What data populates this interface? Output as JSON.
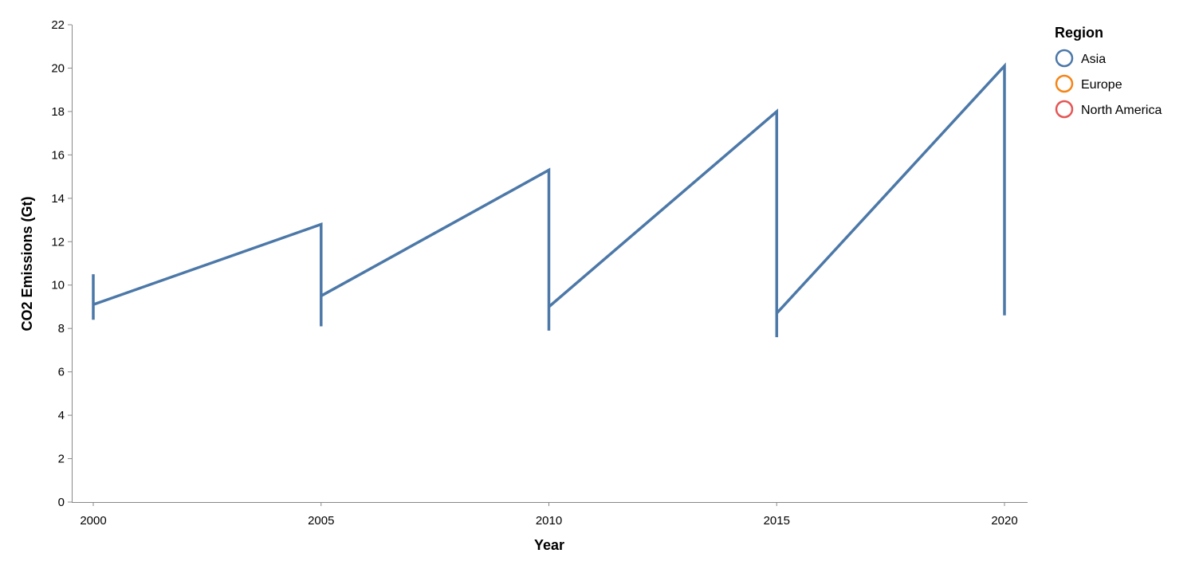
{
  "chart_data": {
    "type": "line",
    "xlabel": "Year",
    "ylabel": "CO2 Emissions (Gt)",
    "xlim": [
      2000,
      2020
    ],
    "ylim": [
      0,
      22
    ],
    "x_ticks": [
      2000,
      2005,
      2010,
      2015,
      2020
    ],
    "y_ticks": [
      0,
      2,
      4,
      6,
      8,
      10,
      12,
      14,
      16,
      18,
      20,
      22
    ],
    "grid": false,
    "legend": {
      "title": "Region",
      "placement": "top-right",
      "entries": [
        {
          "label": "Asia",
          "color": "#4c78a8"
        },
        {
          "label": "Europe",
          "color": "#f58518"
        },
        {
          "label": "North America",
          "color": "#e45756"
        }
      ]
    },
    "series": [
      {
        "name": "Asia",
        "color": "#4c78a8",
        "points": [
          {
            "x": 2000,
            "y": 8.4
          },
          {
            "x": 2000,
            "y": 10.5
          },
          {
            "x": 2000,
            "y": 9.1
          },
          {
            "x": 2005,
            "y": 12.8
          },
          {
            "x": 2005,
            "y": 8.1
          },
          {
            "x": 2005,
            "y": 9.5
          },
          {
            "x": 2010,
            "y": 15.3
          },
          {
            "x": 2010,
            "y": 7.9
          },
          {
            "x": 2010,
            "y": 9.0
          },
          {
            "x": 2015,
            "y": 18.0
          },
          {
            "x": 2015,
            "y": 7.6
          },
          {
            "x": 2015,
            "y": 8.7
          },
          {
            "x": 2020,
            "y": 20.1
          },
          {
            "x": 2020,
            "y": 8.6
          }
        ]
      }
    ]
  }
}
